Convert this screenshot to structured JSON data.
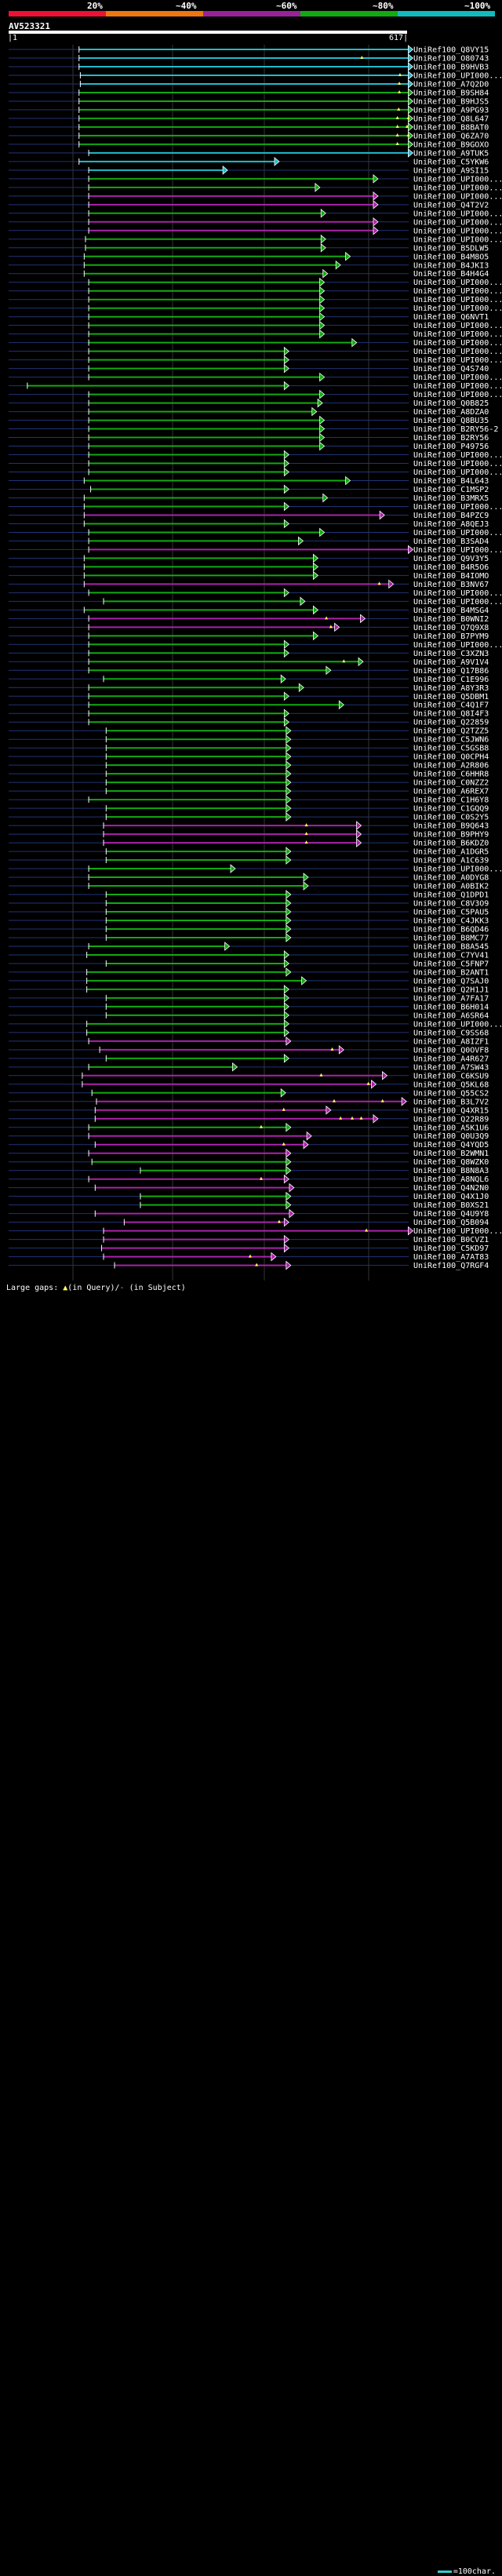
{
  "legend_header": {
    "percent_labels": [
      "20%",
      "~40%",
      "~60%",
      "~80%",
      "~100%"
    ],
    "segments": [
      {
        "color": "#ee1133"
      },
      {
        "color": "#ee7711"
      },
      {
        "color": "#992299"
      },
      {
        "color": "#11aa11"
      },
      {
        "color": "#11bbbb"
      }
    ]
  },
  "query": {
    "id": "AV523321",
    "start": "1",
    "end": "617"
  },
  "footer": {
    "gaps_prefix": "Large gaps: ",
    "gaps_query": "(in Query)/",
    "gaps_subject": "(in Subject)",
    "scale": "=100char."
  },
  "colors": {
    "cyan": "#22bbcc",
    "green": "#11aa11",
    "magenta": "#aa22aa",
    "guide": "#223377",
    "grid": "#333333",
    "gap_query": "#ffff66",
    "gap_subject": "#ff66ff"
  },
  "chart_data": {
    "type": "alignment",
    "query_length": 617,
    "hits": [
      {
        "name": "UniRef100_Q8VY15",
        "start": 110,
        "end": 627,
        "c": "c"
      },
      {
        "name": "UniRef100_O80743",
        "start": 110,
        "end": 627,
        "c": "c",
        "gq": [
          548
        ]
      },
      {
        "name": "UniRef100_B9HVB3",
        "start": 110,
        "end": 627,
        "c": "c"
      },
      {
        "name": "UniRef100_UPI000...",
        "start": 112,
        "end": 627,
        "c": "c",
        "gq": [
          607
        ]
      },
      {
        "name": "UniRef100_A7Q2D0",
        "start": 112,
        "end": 627,
        "c": "c",
        "gq": [
          606
        ]
      },
      {
        "name": "UniRef100_B9SH84",
        "start": 110,
        "end": 627,
        "c": "g",
        "gq": [
          606
        ]
      },
      {
        "name": "UniRef100_B9HJS5",
        "start": 110,
        "end": 627,
        "c": "g"
      },
      {
        "name": "UniRef100_A9PG93",
        "start": 110,
        "end": 627,
        "c": "g",
        "gq": [
          605
        ]
      },
      {
        "name": "UniRef100_Q8L647",
        "start": 110,
        "end": 627,
        "c": "g",
        "gq": [
          603,
          620
        ]
      },
      {
        "name": "UniRef100_B8BAT0",
        "start": 110,
        "end": 627,
        "c": "g",
        "gq": [
          603,
          618
        ]
      },
      {
        "name": "UniRef100_Q6ZA70",
        "start": 110,
        "end": 627,
        "c": "g",
        "gq": [
          603,
          620
        ]
      },
      {
        "name": "UniRef100_B9GOXO",
        "start": 110,
        "end": 627,
        "c": "g",
        "gq": [
          603
        ]
      },
      {
        "name": "UniRef100_A9TUK5",
        "start": 125,
        "end": 627,
        "c": "c"
      },
      {
        "name": "UniRef100_C5YKW6",
        "start": 110,
        "end": 420,
        "c": "c"
      },
      {
        "name": "UniRef100_A9SI15",
        "start": 125,
        "end": 340,
        "c": "c"
      },
      {
        "name": "UniRef100_UPI000...",
        "start": 125,
        "end": 573,
        "c": "g"
      },
      {
        "name": "UniRef100_UPI000...",
        "start": 125,
        "end": 483,
        "c": "g"
      },
      {
        "name": "UniRef100_UPI000...",
        "start": 125,
        "end": 573,
        "c": "m"
      },
      {
        "name": "UniRef100_Q4T2V2",
        "start": 125,
        "end": 573,
        "c": "m"
      },
      {
        "name": "UniRef100_UPI000...",
        "start": 125,
        "end": 492,
        "c": "g"
      },
      {
        "name": "UniRef100_UPI000...",
        "start": 125,
        "end": 573,
        "c": "m"
      },
      {
        "name": "UniRef100_UPI000...",
        "start": 125,
        "end": 573,
        "c": "m"
      },
      {
        "name": "UniRef100_UPI000...",
        "start": 120,
        "end": 492,
        "c": "g"
      },
      {
        "name": "UniRef100_B5DLW5",
        "start": 120,
        "end": 492,
        "c": "g"
      },
      {
        "name": "UniRef100_B4M8O5",
        "start": 118,
        "end": 530,
        "c": "g"
      },
      {
        "name": "UniRef100_B4JKI3",
        "start": 118,
        "end": 515,
        "c": "g"
      },
      {
        "name": "UniRef100_B4H4G4",
        "start": 118,
        "end": 495,
        "c": "g"
      },
      {
        "name": "UniRef100_UPI000...",
        "start": 125,
        "end": 490,
        "c": "g"
      },
      {
        "name": "UniRef100_UPI000...",
        "start": 125,
        "end": 490,
        "c": "g"
      },
      {
        "name": "UniRef100_UPI000...",
        "start": 125,
        "end": 490,
        "c": "g"
      },
      {
        "name": "UniRef100_UPI000...",
        "start": 125,
        "end": 490,
        "c": "g"
      },
      {
        "name": "UniRef100_Q6NVT1",
        "start": 125,
        "end": 490,
        "c": "g"
      },
      {
        "name": "UniRef100_UPI000...",
        "start": 125,
        "end": 490,
        "c": "g"
      },
      {
        "name": "UniRef100_UPI000...",
        "start": 125,
        "end": 490,
        "c": "g"
      },
      {
        "name": "UniRef100_UPI000...",
        "start": 125,
        "end": 540,
        "c": "g"
      },
      {
        "name": "UniRef100_UPI000...",
        "start": 125,
        "end": 435,
        "c": "g"
      },
      {
        "name": "UniRef100_UPI000...",
        "start": 125,
        "end": 435,
        "c": "g"
      },
      {
        "name": "UniRef100_Q4S740",
        "start": 125,
        "end": 435,
        "c": "g"
      },
      {
        "name": "UniRef100_UPI000...",
        "start": 125,
        "end": 490,
        "c": "g"
      },
      {
        "name": "UniRef100_UPI000...",
        "start": 30,
        "end": 435,
        "c": "g"
      },
      {
        "name": "UniRef100_UPI000...",
        "start": 125,
        "end": 490,
        "c": "g"
      },
      {
        "name": "UniRef100_Q0B825",
        "start": 125,
        "end": 487,
        "c": "g"
      },
      {
        "name": "UniRef100_A8DZA0",
        "start": 125,
        "end": 478,
        "c": "g"
      },
      {
        "name": "UniRef100_Q8BU35",
        "start": 125,
        "end": 490,
        "c": "g"
      },
      {
        "name": "UniRef100_B2RY56-2",
        "start": 125,
        "end": 490,
        "c": "g"
      },
      {
        "name": "UniRef100_B2RY56",
        "start": 125,
        "end": 490,
        "c": "g"
      },
      {
        "name": "UniRef100_P49756",
        "start": 125,
        "end": 490,
        "c": "g"
      },
      {
        "name": "UniRef100_UPI000...",
        "start": 125,
        "end": 435,
        "c": "g"
      },
      {
        "name": "UniRef100_UPI000...",
        "start": 125,
        "end": 435,
        "c": "g"
      },
      {
        "name": "UniRef100_UPI000...",
        "start": 125,
        "end": 435,
        "c": "g"
      },
      {
        "name": "UniRef100_B4L643",
        "start": 118,
        "end": 530,
        "c": "g"
      },
      {
        "name": "UniRef100_C1MSP2",
        "start": 128,
        "end": 435,
        "c": "g"
      },
      {
        "name": "UniRef100_B3MRX5",
        "start": 118,
        "end": 495,
        "c": "g"
      },
      {
        "name": "UniRef100_UPI000...",
        "start": 118,
        "end": 435,
        "c": "g"
      },
      {
        "name": "UniRef100_B4PZC9",
        "start": 118,
        "end": 583,
        "c": "m"
      },
      {
        "name": "UniRef100_A8QEJ3",
        "start": 118,
        "end": 435,
        "c": "g"
      },
      {
        "name": "UniRef100_UPI000...",
        "start": 125,
        "end": 490,
        "c": "g"
      },
      {
        "name": "UniRef100_B3SAD4",
        "start": 125,
        "end": 457,
        "c": "g"
      },
      {
        "name": "UniRef100_UPI000...",
        "start": 125,
        "end": 627,
        "c": "m"
      },
      {
        "name": "UniRef100_Q9V3Y5",
        "start": 118,
        "end": 480,
        "c": "g"
      },
      {
        "name": "UniRef100_B4R5O6",
        "start": 118,
        "end": 480,
        "c": "g"
      },
      {
        "name": "UniRef100_B4IOMO",
        "start": 118,
        "end": 480,
        "c": "g"
      },
      {
        "name": "UniRef100_B3NV67",
        "start": 118,
        "end": 597,
        "c": "m",
        "gq": [
          575
        ]
      },
      {
        "name": "UniRef100_UPI000...",
        "start": 125,
        "end": 435,
        "c": "g"
      },
      {
        "name": "UniRef100_UPI000...",
        "start": 148,
        "end": 460,
        "c": "g"
      },
      {
        "name": "UniRef100_B4MSG4",
        "start": 118,
        "end": 480,
        "c": "g"
      },
      {
        "name": "UniRef100_B0WNI2",
        "start": 125,
        "end": 553,
        "c": "m",
        "gq": [
          493
        ]
      },
      {
        "name": "UniRef100_Q7Q9X8",
        "start": 125,
        "end": 513,
        "c": "m",
        "gq": [
          500
        ]
      },
      {
        "name": "UniRef100_B7PYM9",
        "start": 125,
        "end": 480,
        "c": "g"
      },
      {
        "name": "UniRef100_UPI000...",
        "start": 125,
        "end": 435,
        "c": "g"
      },
      {
        "name": "UniRef100_C3XZN3",
        "start": 125,
        "end": 435,
        "c": "g"
      },
      {
        "name": "UniRef100_A9V1V4",
        "start": 125,
        "end": 550,
        "c": "g",
        "gq": [
          520
        ]
      },
      {
        "name": "UniRef100_Q17B86",
        "start": 125,
        "end": 500,
        "c": "g"
      },
      {
        "name": "UniRef100_C1E996",
        "start": 148,
        "end": 430,
        "c": "g"
      },
      {
        "name": "UniRef100_A8Y3R3",
        "start": 125,
        "end": 458,
        "c": "g"
      },
      {
        "name": "UniRef100_Q5DBM1",
        "start": 125,
        "end": 435,
        "c": "g"
      },
      {
        "name": "UniRef100_C4Q1F7",
        "start": 125,
        "end": 520,
        "c": "g"
      },
      {
        "name": "UniRef100_Q8I4F3",
        "start": 125,
        "end": 435,
        "c": "g"
      },
      {
        "name": "UniRef100_Q22859",
        "start": 125,
        "end": 435,
        "c": "g"
      },
      {
        "name": "UniRef100_Q2TZZ5",
        "start": 152,
        "end": 438,
        "c": "g"
      },
      {
        "name": "UniRef100_C5JWN6",
        "start": 152,
        "end": 438,
        "c": "g"
      },
      {
        "name": "UniRef100_C5GSB8",
        "start": 152,
        "end": 438,
        "c": "g"
      },
      {
        "name": "UniRef100_Q0CPH4",
        "start": 152,
        "end": 438,
        "c": "g"
      },
      {
        "name": "UniRef100_A2R806",
        "start": 152,
        "end": 438,
        "c": "g"
      },
      {
        "name": "UniRef100_C6HHR8",
        "start": 152,
        "end": 438,
        "c": "g"
      },
      {
        "name": "UniRef100_C0NZZ2",
        "start": 152,
        "end": 438,
        "c": "g"
      },
      {
        "name": "UniRef100_A6REX7",
        "start": 152,
        "end": 438,
        "c": "g"
      },
      {
        "name": "UniRef100_C1H6Y8",
        "start": 125,
        "end": 438,
        "c": "g"
      },
      {
        "name": "UniRef100_C1GQQ9",
        "start": 152,
        "end": 438,
        "c": "g"
      },
      {
        "name": "UniRef100_C0S2Y5",
        "start": 152,
        "end": 438,
        "c": "g"
      },
      {
        "name": "UniRef100_B9Q643",
        "start": 148,
        "end": 547,
        "c": "m",
        "gq": [
          462
        ]
      },
      {
        "name": "UniRef100_B9PHY9",
        "start": 148,
        "end": 547,
        "c": "m",
        "gq": [
          462
        ]
      },
      {
        "name": "UniRef100_B6KDZ0",
        "start": 148,
        "end": 547,
        "c": "m",
        "gq": [
          462
        ]
      },
      {
        "name": "UniRef100_A1DGR5",
        "start": 152,
        "end": 438,
        "c": "g"
      },
      {
        "name": "UniRef100_A1C639",
        "start": 152,
        "end": 438,
        "c": "g"
      },
      {
        "name": "UniRef100_UPI000...",
        "start": 125,
        "end": 352,
        "c": "g"
      },
      {
        "name": "UniRef100_A0DYG8",
        "start": 125,
        "end": 465,
        "c": "g"
      },
      {
        "name": "UniRef100_A0BIK2",
        "start": 125,
        "end": 465,
        "c": "g"
      },
      {
        "name": "UniRef100_Q1DPD1",
        "start": 152,
        "end": 438,
        "c": "g"
      },
      {
        "name": "UniRef100_C8V3O9",
        "start": 152,
        "end": 438,
        "c": "g"
      },
      {
        "name": "UniRef100_C5PAU5",
        "start": 152,
        "end": 438,
        "c": "g"
      },
      {
        "name": "UniRef100_C4JKK3",
        "start": 152,
        "end": 438,
        "c": "g"
      },
      {
        "name": "UniRef100_B6QD46",
        "start": 152,
        "end": 438,
        "c": "g"
      },
      {
        "name": "UniRef100_B8MC77",
        "start": 152,
        "end": 438,
        "c": "g"
      },
      {
        "name": "UniRef100_B8A545",
        "start": 125,
        "end": 343,
        "c": "g"
      },
      {
        "name": "UniRef100_C7YV41",
        "start": 122,
        "end": 435,
        "c": "g"
      },
      {
        "name": "UniRef100_C5FNP7",
        "start": 152,
        "end": 435,
        "c": "g"
      },
      {
        "name": "UniRef100_B2ANT1",
        "start": 122,
        "end": 438,
        "c": "g"
      },
      {
        "name": "UniRef100_Q7SAJ0",
        "start": 122,
        "end": 462,
        "c": "g"
      },
      {
        "name": "UniRef100_Q2H1J1",
        "start": 122,
        "end": 435,
        "c": "g"
      },
      {
        "name": "UniRef100_A7FA17",
        "start": 152,
        "end": 435,
        "c": "g"
      },
      {
        "name": "UniRef100_B6H014",
        "start": 152,
        "end": 435,
        "c": "g"
      },
      {
        "name": "UniRef100_A6SR64",
        "start": 152,
        "end": 435,
        "c": "g"
      },
      {
        "name": "UniRef100_UPI000...",
        "start": 122,
        "end": 435,
        "c": "g"
      },
      {
        "name": "UniRef100_C9SS68",
        "start": 122,
        "end": 435,
        "c": "g"
      },
      {
        "name": "UniRef100_A8IZF1",
        "start": 125,
        "end": 438,
        "c": "m"
      },
      {
        "name": "UniRef100_Q0OVF8",
        "start": 142,
        "end": 520,
        "c": "m",
        "gq": [
          502
        ]
      },
      {
        "name": "UniRef100_A4R627",
        "start": 152,
        "end": 435,
        "c": "g"
      },
      {
        "name": "UniRef100_A7SW43",
        "start": 125,
        "end": 355,
        "c": "g"
      },
      {
        "name": "UniRef100_C6KSU9",
        "start": 115,
        "end": 587,
        "c": "m",
        "gq": [
          485
        ]
      },
      {
        "name": "UniRef100_Q5KL68",
        "start": 115,
        "end": 570,
        "c": "m",
        "gq": [
          558
        ]
      },
      {
        "name": "UniRef100_Q55CS2",
        "start": 130,
        "end": 430,
        "c": "g"
      },
      {
        "name": "UniRef100_B3L7V2",
        "start": 137,
        "end": 617,
        "c": "m",
        "gq": [
          505,
          580
        ]
      },
      {
        "name": "UniRef100_Q4XR15",
        "start": 135,
        "end": 500,
        "c": "m",
        "gq": [
          427
        ]
      },
      {
        "name": "UniRef100_Q22R89",
        "start": 135,
        "end": 573,
        "c": "m",
        "gq": [
          515,
          533,
          547
        ]
      },
      {
        "name": "UniRef100_A5K1U6",
        "start": 125,
        "end": 438,
        "c": "g",
        "gq": [
          392
        ]
      },
      {
        "name": "UniRef100_Q0U3Q9",
        "start": 125,
        "end": 470,
        "c": "m"
      },
      {
        "name": "UniRef100_Q4YQD5",
        "start": 135,
        "end": 465,
        "c": "m",
        "gq": [
          427
        ]
      },
      {
        "name": "UniRef100_B2WMN1",
        "start": 125,
        "end": 438,
        "c": "m"
      },
      {
        "name": "UniRef100_Q8WZK0",
        "start": 130,
        "end": 438,
        "c": "g"
      },
      {
        "name": "UniRef100_B8N8A3",
        "start": 205,
        "end": 438,
        "c": "g"
      },
      {
        "name": "UniRef100_A8NQL6",
        "start": 125,
        "end": 435,
        "c": "m",
        "gq": [
          392
        ]
      },
      {
        "name": "UniRef100_Q4N2N0",
        "start": 135,
        "end": 443,
        "c": "m"
      },
      {
        "name": "UniRef100_Q4X1J0",
        "start": 205,
        "end": 438,
        "c": "g"
      },
      {
        "name": "UniRef100_B0XS21",
        "start": 205,
        "end": 438,
        "c": "g"
      },
      {
        "name": "UniRef100_Q4U9Y8",
        "start": 135,
        "end": 443,
        "c": "m"
      },
      {
        "name": "UniRef100_Q5B094",
        "start": 180,
        "end": 435,
        "c": "m",
        "gq": [
          420
        ]
      },
      {
        "name": "UniRef100_UPI000...",
        "start": 148,
        "end": 627,
        "c": "m",
        "gq": [
          555
        ]
      },
      {
        "name": "UniRef100_B0CVZ1",
        "start": 148,
        "end": 435,
        "c": "m"
      },
      {
        "name": "UniRef100_C5KD97",
        "start": 145,
        "end": 435,
        "c": "m"
      },
      {
        "name": "UniRef100_A7AT83",
        "start": 148,
        "end": 415,
        "c": "m",
        "gq": [
          375
        ]
      },
      {
        "name": "UniRef100_Q7RGF4",
        "start": 165,
        "end": 438,
        "c": "m",
        "gq": [
          385
        ]
      }
    ]
  }
}
